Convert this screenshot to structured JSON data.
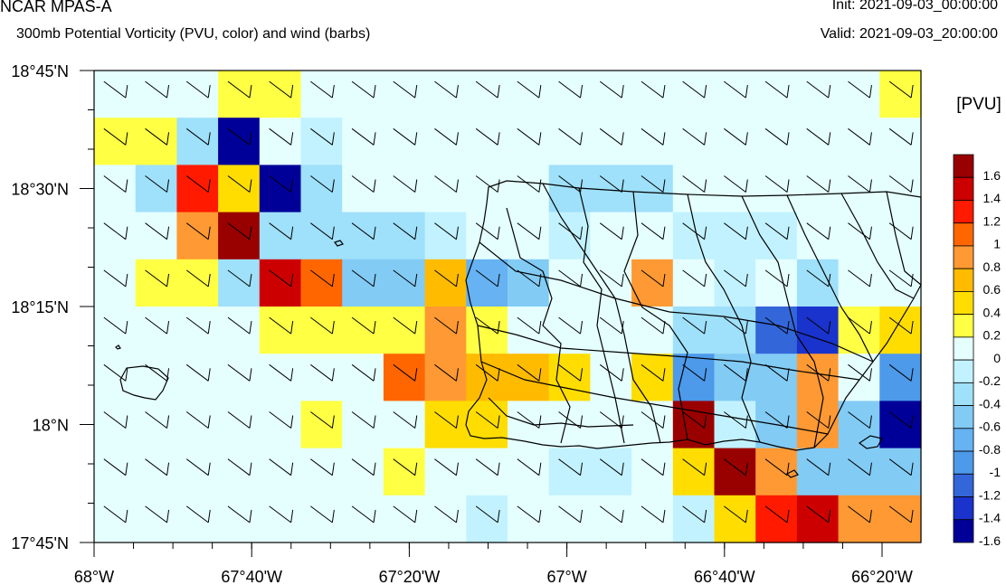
{
  "header": {
    "title": "NCAR MPAS-A",
    "subtitle": "300mb Potential Vorticity (PVU, color) and wind (barbs)",
    "init": "Init: 2021-09-03_00:00:00",
    "valid": "Valid: 2021-09-03_20:00:00"
  },
  "map": {
    "y_tick_labels": [
      "18°45'N",
      "18°30'N",
      "18°15'N",
      "18°N",
      "17°45'N"
    ],
    "x_tick_labels": [
      "68°W",
      "67°40'W",
      "67°20'W",
      "67°W",
      "66°40'W",
      "66°20'W"
    ],
    "pv_grid": [
      [
        0,
        0,
        0,
        0.2,
        0.2,
        0,
        0,
        0,
        0,
        0,
        0,
        0,
        0,
        0,
        0,
        0,
        0,
        0,
        0,
        0.2
      ],
      [
        0.2,
        0.2,
        -0.4,
        -1.6,
        0,
        -0.2,
        0,
        0,
        0,
        0,
        0,
        0,
        0,
        0,
        0,
        0,
        0,
        0,
        0,
        0
      ],
      [
        0,
        -0.4,
        1.2,
        0.4,
        -1.6,
        -0.4,
        0,
        0,
        0,
        0,
        0,
        -0.4,
        -0.4,
        -0.4,
        0,
        0,
        0,
        0,
        0,
        0
      ],
      [
        0,
        0,
        0.8,
        1.6,
        -0.4,
        -0.4,
        -0.4,
        -0.4,
        -0.2,
        0,
        0,
        -0.2,
        0,
        0,
        -0.2,
        -0.2,
        -0.2,
        0,
        0,
        0
      ],
      [
        0,
        0.2,
        0.2,
        -0.4,
        1.4,
        1,
        -0.6,
        -0.6,
        0.6,
        -0.8,
        -0.6,
        0,
        0,
        0.8,
        0,
        -0.2,
        0,
        -0.4,
        0,
        0
      ],
      [
        0,
        0,
        0,
        0,
        0.2,
        0.2,
        0.2,
        0.2,
        0.8,
        0.2,
        0,
        0,
        0,
        0,
        -0.4,
        -0.4,
        -1.2,
        -1.4,
        0.2,
        0.4
      ],
      [
        0,
        0,
        0,
        0,
        0,
        0,
        0,
        1,
        0.8,
        0.6,
        0.6,
        0.4,
        0,
        0.4,
        -1,
        -0.6,
        -0.6,
        0.8,
        0,
        -1
      ],
      [
        0,
        0,
        0,
        0,
        0,
        0.2,
        0,
        0,
        0.4,
        0.4,
        0,
        0,
        0,
        0,
        1.6,
        -0.2,
        -0.6,
        0.8,
        -0.6,
        -1.6
      ],
      [
        0,
        0,
        0,
        0,
        0,
        0,
        0,
        0.2,
        0,
        0,
        0,
        -0.2,
        -0.2,
        0,
        0.4,
        1.6,
        0.8,
        -0.6,
        -0.6,
        -0.6
      ],
      [
        0,
        0,
        0,
        0,
        0,
        0,
        0,
        0,
        0,
        -0.2,
        0,
        0,
        0,
        0,
        -0.2,
        0.4,
        1.2,
        1.4,
        0.8,
        0.8
      ]
    ]
  },
  "colorbar": {
    "title": "[PVU]",
    "levels": [
      "1.6",
      "1.4",
      "1.2",
      "1",
      "0.8",
      "0.6",
      "0.4",
      "0.2",
      "0",
      "-0.2",
      "-0.4",
      "-0.6",
      "-0.8",
      "-1",
      "-1.2",
      "-1.4",
      "-1.6"
    ],
    "colors": [
      "#990000",
      "#cc0000",
      "#ff1a00",
      "#ff6600",
      "#ff9933",
      "#ffbb00",
      "#ffdd00",
      "#ffff44",
      "#e5ffff",
      "#c2f2ff",
      "#9fe0fa",
      "#82cbf5",
      "#66b2f2",
      "#4d99ea",
      "#3366d9",
      "#1a33cc",
      "#000099"
    ]
  }
}
